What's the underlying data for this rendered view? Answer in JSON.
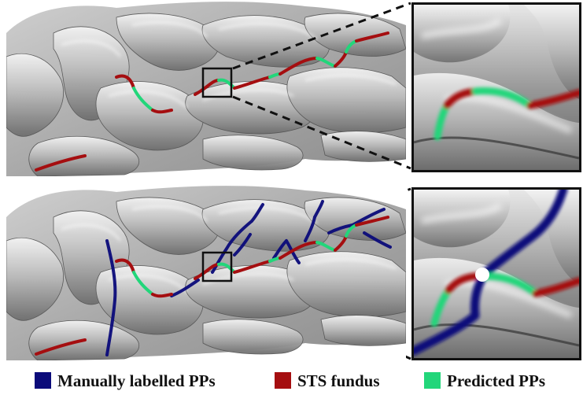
{
  "colors": {
    "manual": "#0b0b7a",
    "fundus": "#a50e10",
    "predicted": "#22d67a",
    "marker": "#ffffff"
  },
  "legend": [
    {
      "label": "Manually labelled PPs",
      "color": "#0b0b7a"
    },
    {
      "label": "STS fundus",
      "color": "#a50e10"
    },
    {
      "label": "Predicted PPs",
      "color": "#22d67a"
    }
  ]
}
